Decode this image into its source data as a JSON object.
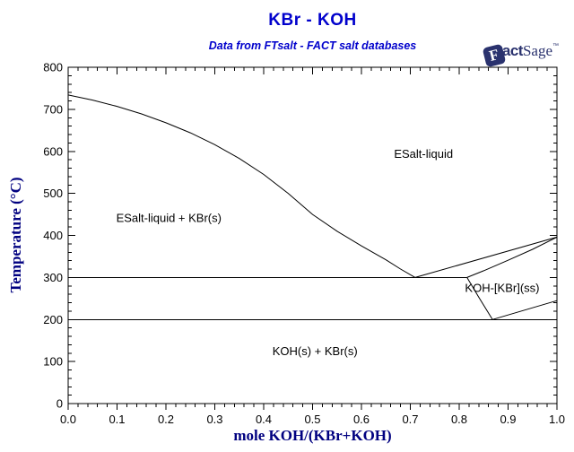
{
  "header": {
    "title": "KBr - KOH",
    "subtitle": "Data from FTsalt - FACT salt databases"
  },
  "logo": {
    "f": "F",
    "act": "act",
    "sage": "Sage",
    "mark": "™"
  },
  "axes": {
    "x_title": "mole KOH/(KBr+KOH)",
    "y_title": "Temperature (°C)"
  },
  "colors": {
    "title_blue": "#0000CC",
    "axis_title_navy": "#000080",
    "logo_navy": "#2a326e",
    "line_color": "#000000"
  },
  "chart_data": {
    "type": "line",
    "title": "KBr - KOH",
    "subtitle": "Data from FTsalt - FACT salt databases",
    "xlabel": "mole KOH/(KBr+KOH)",
    "ylabel": "Temperature (°C)",
    "xlim": [
      0,
      1
    ],
    "ylim": [
      0,
      800
    ],
    "grid": false,
    "x_ticks": [
      [
        0,
        "0.0"
      ],
      [
        0.1,
        "0.1"
      ],
      [
        0.2,
        "0.2"
      ],
      [
        0.3,
        "0.3"
      ],
      [
        0.4,
        "0.4"
      ],
      [
        0.5,
        "0.5"
      ],
      [
        0.6,
        "0.6"
      ],
      [
        0.7,
        "0.7"
      ],
      [
        0.8,
        "0.8"
      ],
      [
        0.9,
        "0.9"
      ],
      [
        1,
        "1.0"
      ]
    ],
    "y_ticks": [
      [
        0,
        "0"
      ],
      [
        100,
        "100"
      ],
      [
        200,
        "200"
      ],
      [
        300,
        "300"
      ],
      [
        400,
        "400"
      ],
      [
        500,
        "500"
      ],
      [
        600,
        "600"
      ],
      [
        700,
        "700"
      ],
      [
        800,
        "800"
      ]
    ],
    "x_minor_step": 0.02,
    "y_minor_step": 20,
    "key_points": {
      "KBr_melting_C": 734,
      "KOH_melting_C": 396,
      "eutectic": {
        "x": 0.71,
        "T_C": 300
      },
      "eutectic_line_C": 300,
      "transition_line_C": 200
    },
    "series": [
      {
        "name": "liquidus-KBr",
        "points": [
          [
            0,
            734
          ],
          [
            0.05,
            722
          ],
          [
            0.1,
            707
          ],
          [
            0.15,
            689
          ],
          [
            0.2,
            668
          ],
          [
            0.25,
            644
          ],
          [
            0.3,
            616
          ],
          [
            0.35,
            583
          ],
          [
            0.4,
            545
          ],
          [
            0.45,
            500
          ],
          [
            0.5,
            450
          ],
          [
            0.55,
            410
          ],
          [
            0.6,
            375
          ],
          [
            0.65,
            342
          ],
          [
            0.68,
            320
          ],
          [
            0.71,
            300
          ]
        ]
      },
      {
        "name": "liquidus-KOH",
        "points": [
          [
            0.71,
            300
          ],
          [
            1.0,
            396
          ]
        ]
      },
      {
        "name": "solidus-KOH-ss",
        "points": [
          [
            0.816,
            300
          ],
          [
            0.85,
            316
          ],
          [
            0.9,
            341
          ],
          [
            0.95,
            367
          ],
          [
            1.0,
            396
          ]
        ]
      },
      {
        "name": "eutectic-line-300C",
        "points": [
          [
            0,
            300
          ],
          [
            0.816,
            300
          ]
        ]
      },
      {
        "name": "transition-line-200C",
        "points": [
          [
            0,
            200
          ],
          [
            1.0,
            200
          ]
        ]
      },
      {
        "name": "solvus-left",
        "points": [
          [
            0.816,
            300
          ],
          [
            0.84,
            253
          ],
          [
            0.868,
            200
          ]
        ]
      },
      {
        "name": "solvus-lower",
        "points": [
          [
            0.868,
            200
          ],
          [
            1.0,
            245
          ]
        ]
      }
    ],
    "region_labels": [
      {
        "text": "ESalt-liquid",
        "x": 0.727,
        "y": 593
      },
      {
        "text": "ESalt-liquid + KBr(s)",
        "x": 0.206,
        "y": 441
      },
      {
        "text": "KOH-[KBr](ss)",
        "x": 0.888,
        "y": 274
      },
      {
        "text": "KOH(s) + KBr(s)",
        "x": 0.505,
        "y": 124
      }
    ]
  }
}
